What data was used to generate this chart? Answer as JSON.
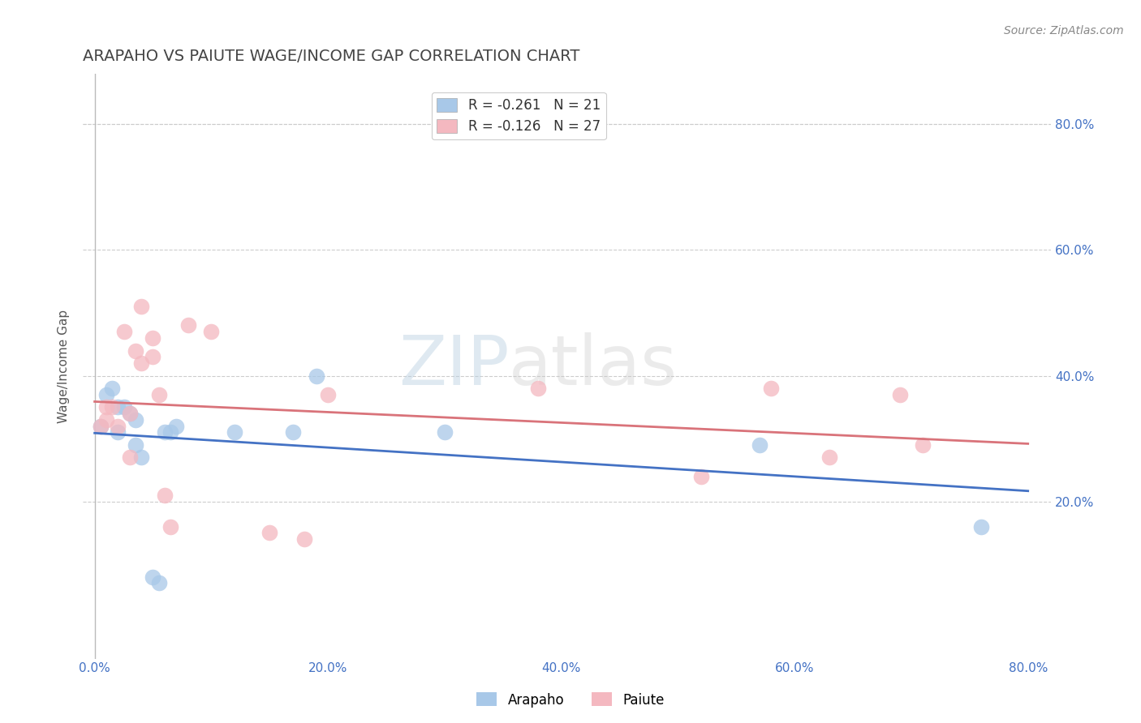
{
  "title": "ARAPAHO VS PAIUTE WAGE/INCOME GAP CORRELATION CHART",
  "source": "Source: ZipAtlas.com",
  "xlabel": "",
  "ylabel": "Wage/Income Gap",
  "xlim": [
    -0.01,
    0.82
  ],
  "ylim": [
    -0.05,
    0.88
  ],
  "xtick_labels": [
    "0.0%",
    "20.0%",
    "40.0%",
    "60.0%",
    "80.0%"
  ],
  "xtick_vals": [
    0.0,
    0.2,
    0.4,
    0.6,
    0.8
  ],
  "ytick_labels": [
    "20.0%",
    "40.0%",
    "60.0%",
    "80.0%"
  ],
  "ytick_vals": [
    0.2,
    0.4,
    0.6,
    0.8
  ],
  "right_ytick_labels": [
    "20.0%",
    "40.0%",
    "60.0%",
    "80.0%"
  ],
  "right_ytick_vals": [
    0.2,
    0.4,
    0.6,
    0.8
  ],
  "legend_entries": [
    {
      "label": "R = -0.261   N = 21",
      "color": "#a8c8e8"
    },
    {
      "label": "R = -0.126   N = 27",
      "color": "#f4b8c0"
    }
  ],
  "arapaho_color": "#a8c8e8",
  "paiute_color": "#f4b8c0",
  "arapaho_line_color": "#4472c4",
  "paiute_line_color": "#d9737a",
  "watermark_zip": "ZIP",
  "watermark_atlas": "atlas",
  "arapaho_x": [
    0.005,
    0.01,
    0.015,
    0.02,
    0.02,
    0.025,
    0.03,
    0.035,
    0.035,
    0.04,
    0.05,
    0.055,
    0.06,
    0.065,
    0.07,
    0.12,
    0.17,
    0.19,
    0.3,
    0.57,
    0.76
  ],
  "arapaho_y": [
    0.32,
    0.37,
    0.38,
    0.35,
    0.31,
    0.35,
    0.34,
    0.33,
    0.29,
    0.27,
    0.08,
    0.07,
    0.31,
    0.31,
    0.32,
    0.31,
    0.31,
    0.4,
    0.31,
    0.29,
    0.16
  ],
  "paiute_x": [
    0.005,
    0.01,
    0.01,
    0.015,
    0.02,
    0.025,
    0.03,
    0.03,
    0.035,
    0.04,
    0.04,
    0.05,
    0.05,
    0.055,
    0.06,
    0.065,
    0.08,
    0.1,
    0.15,
    0.18,
    0.2,
    0.38,
    0.52,
    0.58,
    0.63,
    0.69,
    0.71
  ],
  "paiute_y": [
    0.32,
    0.33,
    0.35,
    0.35,
    0.32,
    0.47,
    0.34,
    0.27,
    0.44,
    0.42,
    0.51,
    0.43,
    0.46,
    0.37,
    0.21,
    0.16,
    0.48,
    0.47,
    0.15,
    0.14,
    0.37,
    0.38,
    0.24,
    0.38,
    0.27,
    0.37,
    0.29
  ],
  "arapaho_R": -0.261,
  "paiute_R": -0.126,
  "arapaho_N": 21,
  "paiute_N": 27
}
